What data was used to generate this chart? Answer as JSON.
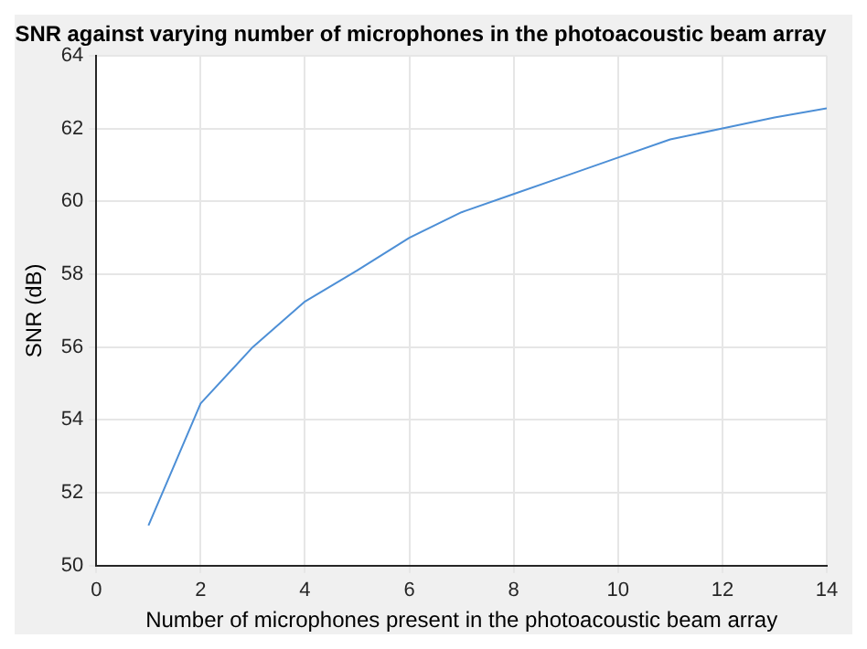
{
  "chart_data": {
    "type": "line",
    "title": "SNR against varying number of microphones in the photoacoustic beam array",
    "xlabel": "Number of microphones present in the photoacoustic beam array",
    "ylabel": "SNR (dB)",
    "x": [
      1,
      2,
      3,
      4,
      5,
      6,
      7,
      8,
      9,
      10,
      11,
      12,
      13,
      14
    ],
    "series": [
      {
        "color": "#4d8fd6",
        "values": [
          51.1,
          54.45,
          56.0,
          57.25,
          58.1,
          59.0,
          59.7,
          60.2,
          60.7,
          61.2,
          61.7,
          62.0,
          62.3,
          62.55
        ]
      }
    ],
    "xlim": [
      0,
      14
    ],
    "xticks": [
      0,
      2,
      4,
      6,
      8,
      10,
      12,
      14
    ],
    "ylim": [
      50,
      64
    ],
    "yticks": [
      50,
      52,
      54,
      56,
      58,
      60,
      62,
      64
    ],
    "grid": true,
    "legend": false,
    "marker": "none",
    "line_style": "solid"
  }
}
